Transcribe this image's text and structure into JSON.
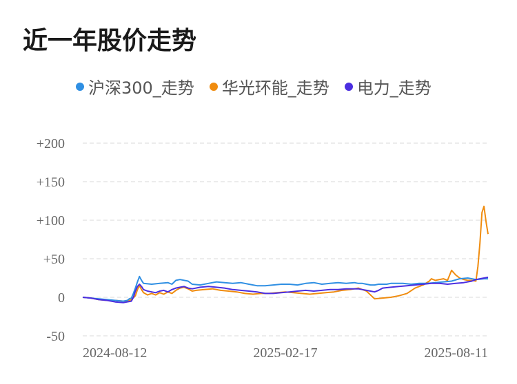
{
  "title": "近一年股价走势",
  "chart_data": {
    "type": "line",
    "title": "近一年股价走势",
    "xlabel": "",
    "ylabel": "",
    "ylim": [
      -50,
      200
    ],
    "y_ticks": [
      {
        "value": 200,
        "label": "+200"
      },
      {
        "value": 150,
        "label": "+150"
      },
      {
        "value": 100,
        "label": "+100"
      },
      {
        "value": 50,
        "label": "+50"
      },
      {
        "value": 0,
        "label": "0"
      },
      {
        "value": -50,
        "label": "-50"
      }
    ],
    "x_ticks": [
      {
        "x": 0,
        "label": "2024-08-12"
      },
      {
        "x": 0.5,
        "label": "2025-02-17"
      },
      {
        "x": 1,
        "label": "2025-08-11"
      }
    ],
    "grid": true,
    "legend_position": "top",
    "series": [
      {
        "name": "沪深300_走势",
        "color": "#2f8fe3",
        "points": [
          [
            0,
            0
          ],
          [
            0.02,
            -1
          ],
          [
            0.04,
            -2
          ],
          [
            0.06,
            -3
          ],
          [
            0.08,
            -4
          ],
          [
            0.1,
            -5
          ],
          [
            0.11,
            -4
          ],
          [
            0.115,
            -2
          ],
          [
            0.12,
            -1
          ],
          [
            0.125,
            5
          ],
          [
            0.13,
            12
          ],
          [
            0.135,
            20
          ],
          [
            0.14,
            27
          ],
          [
            0.145,
            22
          ],
          [
            0.15,
            18
          ],
          [
            0.17,
            17
          ],
          [
            0.19,
            18
          ],
          [
            0.21,
            19
          ],
          [
            0.22,
            17
          ],
          [
            0.23,
            22
          ],
          [
            0.24,
            23
          ],
          [
            0.26,
            21
          ],
          [
            0.27,
            17
          ],
          [
            0.29,
            16
          ],
          [
            0.31,
            18
          ],
          [
            0.33,
            20
          ],
          [
            0.35,
            19
          ],
          [
            0.37,
            18
          ],
          [
            0.39,
            19
          ],
          [
            0.41,
            17
          ],
          [
            0.43,
            15
          ],
          [
            0.45,
            15
          ],
          [
            0.47,
            16
          ],
          [
            0.49,
            17
          ],
          [
            0.51,
            17
          ],
          [
            0.53,
            16
          ],
          [
            0.55,
            18
          ],
          [
            0.57,
            19
          ],
          [
            0.59,
            17
          ],
          [
            0.61,
            18
          ],
          [
            0.63,
            19
          ],
          [
            0.65,
            18
          ],
          [
            0.67,
            19
          ],
          [
            0.68,
            18
          ],
          [
            0.69,
            18
          ],
          [
            0.7,
            17
          ],
          [
            0.71,
            16
          ],
          [
            0.72,
            16
          ],
          [
            0.73,
            17
          ],
          [
            0.74,
            17
          ],
          [
            0.75,
            17
          ],
          [
            0.76,
            18
          ],
          [
            0.77,
            18
          ],
          [
            0.79,
            18
          ],
          [
            0.81,
            17
          ],
          [
            0.83,
            18
          ],
          [
            0.85,
            18
          ],
          [
            0.87,
            19
          ],
          [
            0.89,
            20
          ],
          [
            0.91,
            21
          ],
          [
            0.93,
            24
          ],
          [
            0.95,
            25
          ],
          [
            0.97,
            23
          ],
          [
            0.99,
            24
          ],
          [
            1,
            24
          ]
        ]
      },
      {
        "name": "华光环能_走势",
        "color": "#f08c0f",
        "points": [
          [
            0,
            0
          ],
          [
            0.02,
            -1
          ],
          [
            0.04,
            -3
          ],
          [
            0.06,
            -4
          ],
          [
            0.08,
            -4
          ],
          [
            0.1,
            -5
          ],
          [
            0.11,
            -5
          ],
          [
            0.12,
            -3
          ],
          [
            0.13,
            2
          ],
          [
            0.135,
            10
          ],
          [
            0.14,
            15
          ],
          [
            0.145,
            10
          ],
          [
            0.15,
            6
          ],
          [
            0.16,
            3
          ],
          [
            0.17,
            5
          ],
          [
            0.18,
            3
          ],
          [
            0.19,
            6
          ],
          [
            0.2,
            4
          ],
          [
            0.21,
            7
          ],
          [
            0.22,
            5
          ],
          [
            0.23,
            9
          ],
          [
            0.24,
            12
          ],
          [
            0.25,
            13
          ],
          [
            0.26,
            11
          ],
          [
            0.27,
            8
          ],
          [
            0.28,
            9
          ],
          [
            0.3,
            10
          ],
          [
            0.32,
            11
          ],
          [
            0.34,
            9
          ],
          [
            0.36,
            8
          ],
          [
            0.38,
            7
          ],
          [
            0.4,
            5
          ],
          [
            0.42,
            4
          ],
          [
            0.44,
            5
          ],
          [
            0.46,
            5
          ],
          [
            0.48,
            6
          ],
          [
            0.5,
            7
          ],
          [
            0.52,
            6
          ],
          [
            0.54,
            5
          ],
          [
            0.56,
            4
          ],
          [
            0.58,
            5
          ],
          [
            0.6,
            6
          ],
          [
            0.62,
            7
          ],
          [
            0.64,
            9
          ],
          [
            0.66,
            10
          ],
          [
            0.67,
            11
          ],
          [
            0.68,
            12
          ],
          [
            0.69,
            10
          ],
          [
            0.7,
            8
          ],
          [
            0.72,
            -2
          ],
          [
            0.74,
            -1
          ],
          [
            0.76,
            0
          ],
          [
            0.78,
            2
          ],
          [
            0.8,
            5
          ],
          [
            0.82,
            12
          ],
          [
            0.84,
            16
          ],
          [
            0.855,
            21
          ],
          [
            0.86,
            24
          ],
          [
            0.87,
            22
          ],
          [
            0.88,
            23
          ],
          [
            0.89,
            24
          ],
          [
            0.9,
            22
          ],
          [
            0.91,
            35
          ],
          [
            0.92,
            29
          ],
          [
            0.93,
            25
          ],
          [
            0.94,
            23
          ],
          [
            0.95,
            22
          ],
          [
            0.96,
            22
          ],
          [
            0.97,
            21
          ],
          [
            0.975,
            40
          ],
          [
            0.98,
            70
          ],
          [
            0.985,
            110
          ],
          [
            0.99,
            118
          ],
          [
            0.995,
            98
          ],
          [
            1,
            82
          ]
        ]
      },
      {
        "name": "电力_走势",
        "color": "#4b2ee0",
        "points": [
          [
            0,
            0
          ],
          [
            0.02,
            -1
          ],
          [
            0.04,
            -3
          ],
          [
            0.06,
            -4
          ],
          [
            0.08,
            -6
          ],
          [
            0.1,
            -7
          ],
          [
            0.11,
            -6
          ],
          [
            0.12,
            -5
          ],
          [
            0.125,
            0
          ],
          [
            0.13,
            8
          ],
          [
            0.135,
            14
          ],
          [
            0.14,
            17
          ],
          [
            0.145,
            14
          ],
          [
            0.15,
            10
          ],
          [
            0.16,
            8
          ],
          [
            0.17,
            7
          ],
          [
            0.18,
            6
          ],
          [
            0.19,
            8
          ],
          [
            0.2,
            9
          ],
          [
            0.21,
            7
          ],
          [
            0.22,
            10
          ],
          [
            0.23,
            12
          ],
          [
            0.24,
            13
          ],
          [
            0.25,
            14
          ],
          [
            0.26,
            12
          ],
          [
            0.27,
            11
          ],
          [
            0.29,
            13
          ],
          [
            0.31,
            14
          ],
          [
            0.33,
            13
          ],
          [
            0.35,
            12
          ],
          [
            0.37,
            10
          ],
          [
            0.39,
            9
          ],
          [
            0.41,
            8
          ],
          [
            0.43,
            7
          ],
          [
            0.45,
            5
          ],
          [
            0.47,
            5
          ],
          [
            0.49,
            6
          ],
          [
            0.51,
            7
          ],
          [
            0.53,
            8
          ],
          [
            0.55,
            9
          ],
          [
            0.57,
            8
          ],
          [
            0.59,
            9
          ],
          [
            0.61,
            10
          ],
          [
            0.63,
            10
          ],
          [
            0.65,
            11
          ],
          [
            0.67,
            11
          ],
          [
            0.68,
            11
          ],
          [
            0.69,
            10
          ],
          [
            0.7,
            9
          ],
          [
            0.71,
            8
          ],
          [
            0.72,
            7
          ],
          [
            0.73,
            9
          ],
          [
            0.74,
            12
          ],
          [
            0.76,
            13
          ],
          [
            0.78,
            14
          ],
          [
            0.8,
            15
          ],
          [
            0.82,
            16
          ],
          [
            0.84,
            17
          ],
          [
            0.86,
            18
          ],
          [
            0.88,
            18
          ],
          [
            0.9,
            17
          ],
          [
            0.92,
            18
          ],
          [
            0.94,
            19
          ],
          [
            0.96,
            21
          ],
          [
            0.97,
            23
          ],
          [
            0.98,
            24
          ],
          [
            0.99,
            25
          ],
          [
            1,
            26
          ]
        ]
      }
    ]
  }
}
